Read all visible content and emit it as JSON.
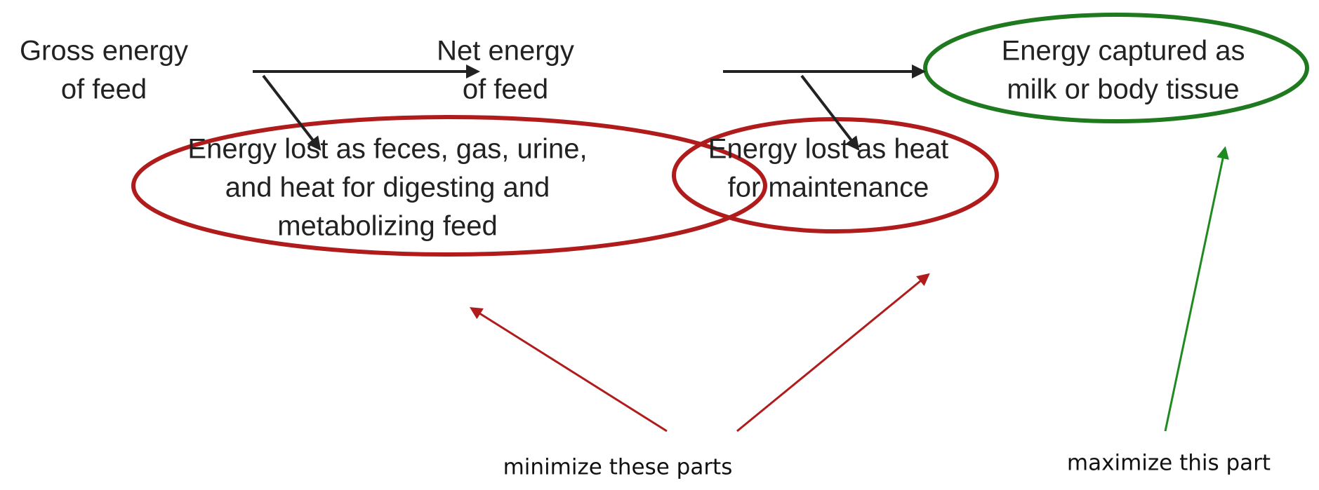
{
  "nodes": [
    {
      "lines": [
        "Gross energy",
        "of feed"
      ]
    },
    {
      "lines": [
        "Net energy",
        "of feed"
      ]
    },
    {
      "lines": [
        "Energy captured as",
        "milk or body tissue"
      ]
    },
    {
      "lines": [
        "Energy lost as feces, gas, urine,",
        "and heat for digesting and",
        "metabolizing feed"
      ]
    },
    {
      "lines": [
        "Energy lost as heat",
        "for maintenance"
      ]
    }
  ],
  "annotations": [
    "minimize these parts",
    "maximize this part"
  ]
}
